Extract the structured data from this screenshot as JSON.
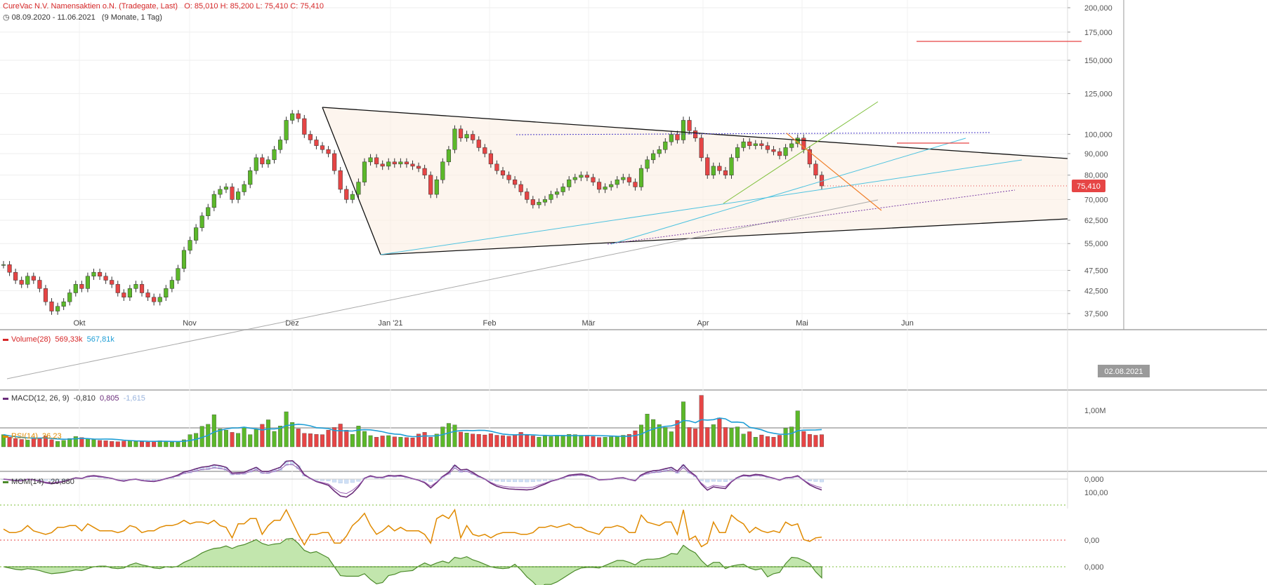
{
  "header": {
    "title": "CureVac N.V. Namensaktien   o.N. (Tradegate, Last)",
    "ohlc": "O: 85,010  H: 85,200  L: 75,410  C: 75,410",
    "range": "08.09.2020 - 11.06.2021",
    "period": "(9 Monate, 1 Tag)"
  },
  "colors": {
    "up": "#5cb82a",
    "down": "#e64545",
    "last_badge": "#e64545"
  },
  "chart_data": [
    {
      "type": "candlestick",
      "name": "price",
      "y_ticks": [
        37.5,
        42.5,
        47.5,
        55,
        62.5,
        70,
        80,
        90,
        100,
        125,
        150,
        175,
        200
      ],
      "y_tick_labels": [
        "37,500",
        "42,500",
        "47,500",
        "55,000",
        "62,500",
        "70,000",
        "80,000",
        "90,000",
        "100,000",
        "125,000",
        "150,000",
        "175,000",
        "200,000"
      ],
      "x_tick_labels": [
        "Okt",
        "Nov",
        "Dez",
        "Jan '21",
        "Feb",
        "Mär",
        "Apr",
        "Mai",
        "Jun"
      ],
      "cursor_date": "02.08.2021",
      "last_price_label": "75,410",
      "last_price": 75.41,
      "close": [
        49,
        47,
        45,
        44,
        46,
        45,
        43,
        40,
        38,
        39,
        40,
        42,
        44,
        43,
        46,
        47,
        46,
        45,
        44,
        42,
        41,
        43,
        44,
        42,
        41,
        40,
        41,
        43,
        45,
        48,
        53,
        56,
        60,
        64,
        67,
        72,
        74,
        75,
        70,
        73,
        76,
        82,
        88,
        85,
        87,
        92,
        97,
        108,
        112,
        109,
        100,
        97,
        94,
        92,
        90,
        82,
        74,
        70,
        72,
        77,
        86,
        88,
        85,
        84,
        86,
        85,
        86,
        85,
        84,
        83,
        80,
        72,
        78,
        86,
        92,
        103,
        98,
        100,
        97,
        93,
        90,
        85,
        82,
        80,
        78,
        76,
        73,
        70,
        68,
        69,
        70,
        72,
        73,
        75,
        78,
        79,
        80,
        79,
        77,
        74,
        75,
        76,
        78,
        79,
        77,
        75,
        83,
        87,
        90,
        92,
        96,
        100,
        97,
        108,
        102,
        98,
        88,
        80,
        84,
        82,
        80,
        88,
        93,
        96,
        94,
        95,
        94,
        92,
        91,
        89,
        93,
        95,
        98,
        92,
        85,
        80,
        75.41
      ],
      "volume": [
        380,
        300,
        260,
        230,
        210,
        250,
        280,
        330,
        220,
        170,
        200,
        260,
        320,
        290,
        250,
        220,
        200,
        190,
        170,
        160,
        180,
        200,
        170,
        160,
        150,
        170,
        190,
        160,
        150,
        170,
        220,
        380,
        420,
        640,
        700,
        1000,
        560,
        520,
        450,
        420,
        610,
        380,
        540,
        700,
        840,
        480,
        650,
        1090,
        760,
        560,
        420,
        410,
        390,
        380,
        520,
        600,
        710,
        520,
        390,
        650,
        480,
        350,
        300,
        340,
        350,
        310,
        300,
        290,
        280,
        400,
        450,
        300,
        400,
        620,
        730,
        680,
        460,
        430,
        400,
        390,
        370,
        410,
        360,
        350,
        330,
        380,
        450,
        360,
        340,
        300,
        330,
        320,
        350,
        360,
        390,
        380,
        360,
        340,
        320,
        290,
        300,
        310,
        330,
        360,
        390,
        500,
        680,
        1020,
        850,
        690,
        600,
        470,
        820,
        1400,
        600,
        560,
        1600,
        600,
        690,
        900,
        600,
        580,
        620,
        400,
        470,
        300,
        370,
        320,
        300,
        360,
        580,
        620,
        1120,
        480,
        390,
        360,
        380
      ],
      "volume_label": "Volume(28)",
      "volume_values": [
        "569,33k",
        "567,81k"
      ],
      "volume_tick": "1,00M"
    },
    {
      "type": "line",
      "name": "MACD",
      "label": "MACD(12, 26, 9)",
      "values": [
        "-0,810",
        "0,805",
        "-1,615"
      ],
      "tick": "0,000"
    },
    {
      "type": "line",
      "name": "RSI",
      "label": "RSI(14)",
      "value": "36,23",
      "ticks": [
        "100,00",
        "0,00"
      ]
    },
    {
      "type": "area",
      "name": "MOM",
      "label": "MOM(14)",
      "value": "-20,880",
      "tick": "0,000"
    }
  ]
}
